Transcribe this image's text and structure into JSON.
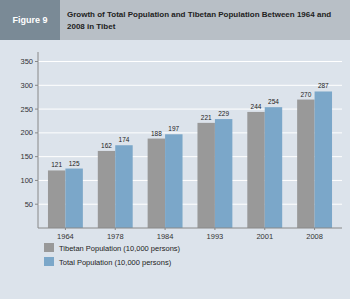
{
  "chart_data": {
    "type": "bar",
    "title": "Growth of Total Population and Tibetan Population Between 1964 and\n2008 in Tibet",
    "annotations": [
      "Figure 9"
    ],
    "categories": [
      "1964",
      "1978",
      "1984",
      "1993",
      "2001",
      "2008"
    ],
    "series": [
      {
        "name": "Tibetan Population (10,000 persons)",
        "color": "#999999",
        "values": [
          121,
          162,
          188,
          221,
          244,
          270
        ]
      },
      {
        "name": "Total Population (10,000 persons)",
        "color": "#7ba7c9",
        "values": [
          125,
          174,
          197,
          229,
          254,
          287
        ]
      }
    ],
    "ylim": [
      0,
      370
    ],
    "yticks": [
      50,
      100,
      150,
      200,
      250,
      300,
      350
    ],
    "grid": true,
    "data_labels": true,
    "legend": "bottom"
  }
}
